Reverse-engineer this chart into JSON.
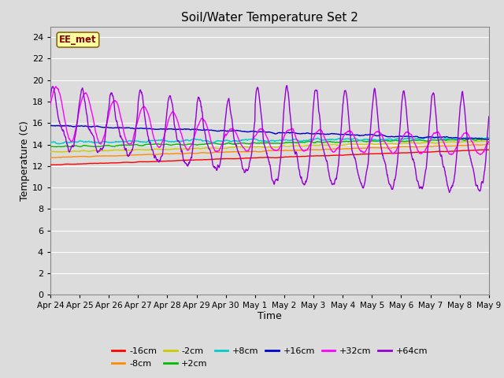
{
  "title": "Soil/Water Temperature Set 2",
  "xlabel": "Time",
  "ylabel": "Temperature (C)",
  "ylim": [
    0,
    25
  ],
  "yticks": [
    0,
    2,
    4,
    6,
    8,
    10,
    12,
    14,
    16,
    18,
    20,
    22,
    24
  ],
  "xlim": [
    0,
    15
  ],
  "xtick_labels": [
    "Apr 24",
    "Apr 25",
    "Apr 26",
    "Apr 27",
    "Apr 28",
    "Apr 29",
    "Apr 30",
    "May 1",
    "May 2",
    "May 3",
    "May 4",
    "May 5",
    "May 6",
    "May 7",
    "May 8",
    "May 9"
  ],
  "annotation_text": "EE_met",
  "annotation_color": "#8B0000",
  "annotation_bg": "#FFFFA0",
  "bg_color": "#DCDCDC",
  "plot_bg_color": "#DCDCDC",
  "series": {
    "-16cm": {
      "color": "#FF0000"
    },
    "-8cm": {
      "color": "#FF8C00"
    },
    "-2cm": {
      "color": "#CCCC00"
    },
    "+2cm": {
      "color": "#00BB00"
    },
    "+8cm": {
      "color": "#00CCCC"
    },
    "+16cm": {
      "color": "#0000CC"
    },
    "+32cm": {
      "color": "#FF00FF"
    },
    "+64cm": {
      "color": "#9400D3"
    }
  }
}
